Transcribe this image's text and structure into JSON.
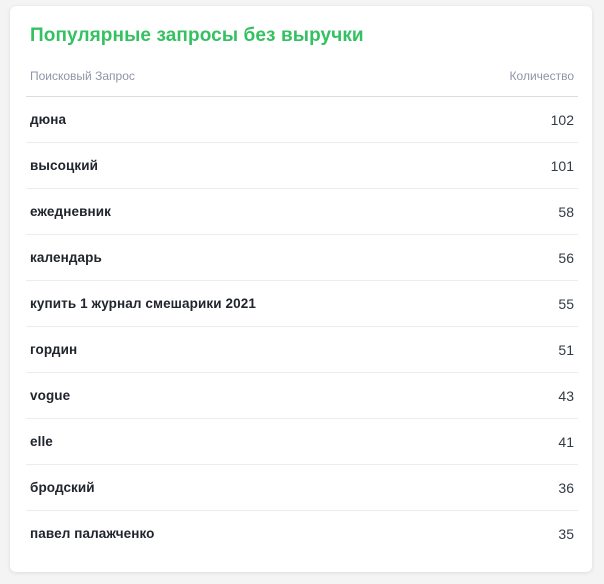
{
  "page": {
    "background_color": "#f4f4f5"
  },
  "card": {
    "title": "Популярные запросы без выручки",
    "title_color": "#34c161",
    "columns": {
      "query": "Поисковый Запрос",
      "count": "Количество"
    },
    "rows": [
      {
        "query": "дюна",
        "count": "102"
      },
      {
        "query": "высоцкий",
        "count": "101"
      },
      {
        "query": "ежедневник",
        "count": "58"
      },
      {
        "query": "календарь",
        "count": "56"
      },
      {
        "query": "купить 1 журнал смешарики 2021",
        "count": "55"
      },
      {
        "query": "гордин",
        "count": "51"
      },
      {
        "query": "vogue",
        "count": "43"
      },
      {
        "query": "elle",
        "count": "41"
      },
      {
        "query": "бродский",
        "count": "36"
      },
      {
        "query": "павел палажченко",
        "count": "35"
      }
    ]
  }
}
